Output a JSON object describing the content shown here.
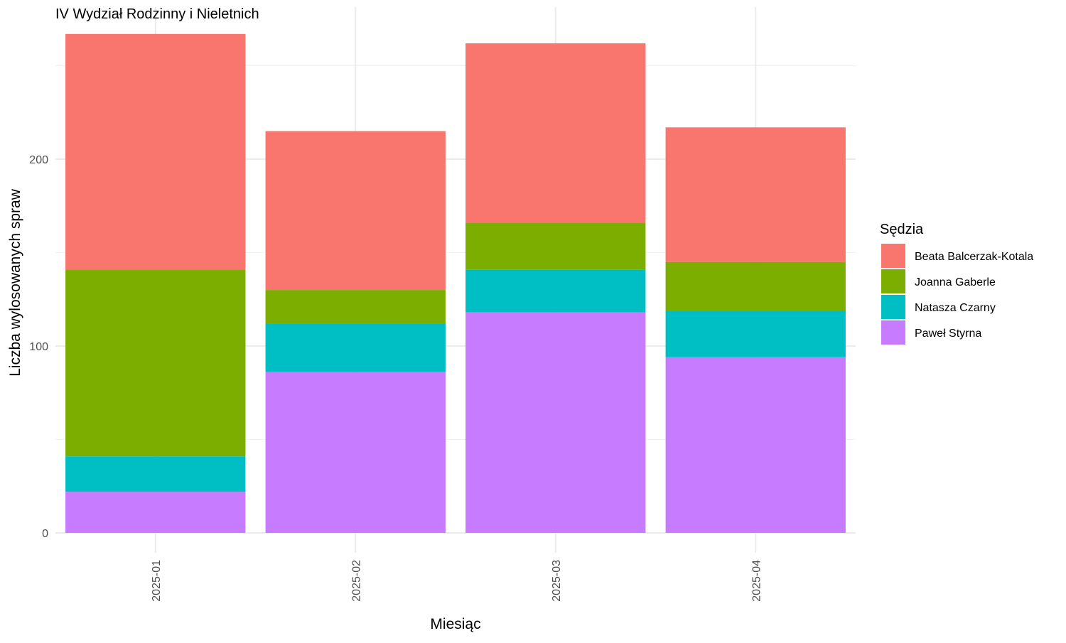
{
  "chart_data": {
    "type": "bar",
    "stacked": true,
    "title": "IV Wydział Rodzinny i Nieletnich",
    "xlabel": "Miesiąc",
    "ylabel": "Liczba wylosowanych spraw",
    "categories": [
      "2025-01",
      "2025-02",
      "2025-03",
      "2025-04"
    ],
    "yticks": [
      0,
      100,
      200
    ],
    "ylim": [
      -10,
      280
    ],
    "grid": true,
    "legend": {
      "title": "Sędzia",
      "position": "right"
    },
    "series": [
      {
        "name": "Paweł Styrna",
        "color": "#C77CFF",
        "values": [
          22,
          86,
          118,
          94
        ]
      },
      {
        "name": "Natasza Czarny",
        "color": "#00BFC4",
        "values": [
          19,
          26,
          23,
          25
        ]
      },
      {
        "name": "Joanna Gaberle",
        "color": "#7CAE00",
        "values": [
          100,
          18,
          25,
          26
        ]
      },
      {
        "name": "Beata Balcerzak-Kotala",
        "color": "#F8766D",
        "values": [
          126,
          85,
          96,
          72
        ]
      }
    ]
  }
}
